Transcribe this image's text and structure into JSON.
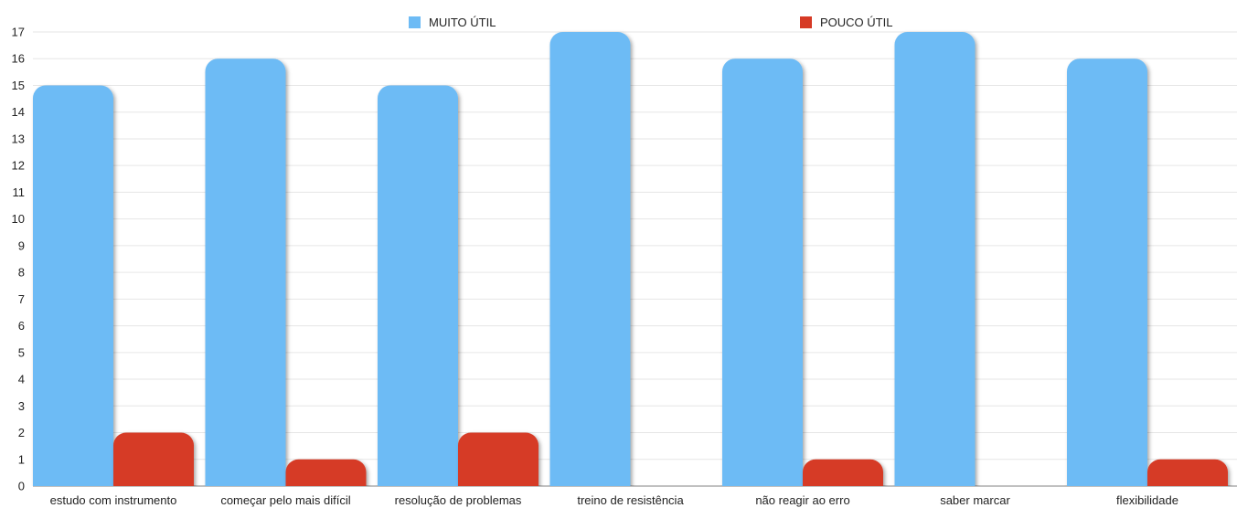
{
  "chart_data": {
    "type": "bar",
    "categories": [
      "estudo com instrumento",
      "começar pelo mais difícil",
      "resolução de problemas",
      "treino de resistência",
      "não reagir ao erro",
      "saber marcar",
      "flexibilidade"
    ],
    "series": [
      {
        "name": "MUITO ÚTIL",
        "color": "#6dbbf5",
        "values": [
          15,
          16,
          15,
          17,
          16,
          17,
          16
        ]
      },
      {
        "name": "POUCO ÚTIL",
        "color": "#d63a25",
        "values": [
          2,
          1,
          2,
          0,
          1,
          0,
          1
        ]
      }
    ],
    "yticks": [
      0,
      1,
      2,
      3,
      4,
      5,
      6,
      7,
      8,
      9,
      10,
      11,
      12,
      13,
      14,
      15,
      16,
      17
    ],
    "ylim": [
      0,
      17
    ],
    "title": "",
    "xlabel": "",
    "ylabel": "",
    "grid": true,
    "legend_position": "top"
  }
}
